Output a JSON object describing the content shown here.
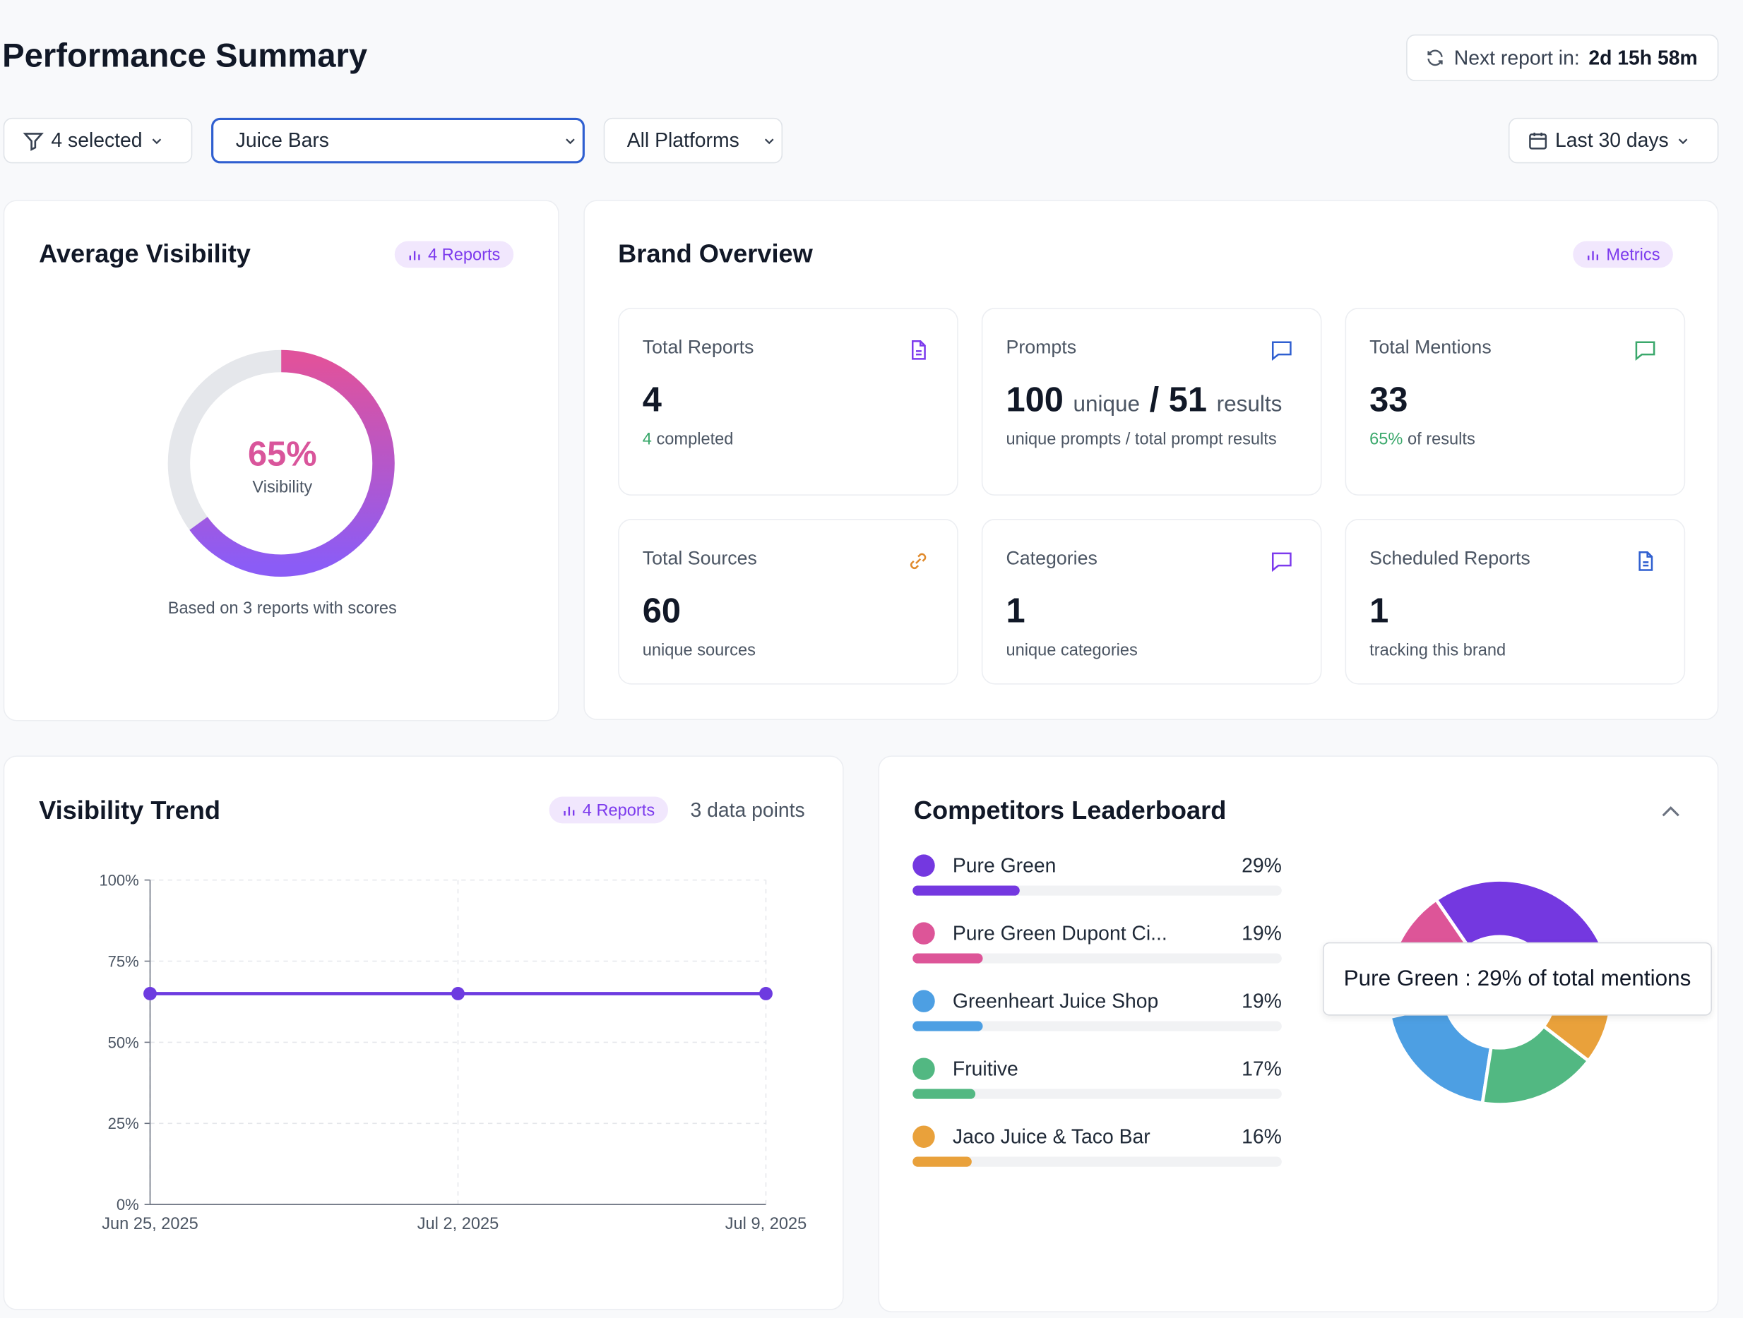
{
  "header": {
    "title": "Performance Summary",
    "next_report_label": "Next report in:",
    "next_report_value": "2d 15h 58m"
  },
  "filters": {
    "selected": "4 selected",
    "category": "Juice Bars",
    "platform": "All Platforms",
    "range": "Last 30 days"
  },
  "average_visibility": {
    "title": "Average Visibility",
    "badge": "4 Reports",
    "value": 65,
    "value_label": "65%",
    "caption": "Visibility",
    "note": "Based on 3 reports with scores"
  },
  "brand_overview": {
    "title": "Brand Overview",
    "badge": "Metrics",
    "cards": [
      {
        "title": "Total Reports",
        "value": 4,
        "sub_highlight": "4",
        "sub": "completed"
      },
      {
        "title": "Prompts",
        "value": 100,
        "value_unit": "unique",
        "separator": "/",
        "value2": 51,
        "value2_unit": "results",
        "sub": "unique prompts / total prompt results"
      },
      {
        "title": "Total Mentions",
        "value": 33,
        "sub_highlight": "65%",
        "sub": "of results"
      },
      {
        "title": "Total Sources",
        "value": 60,
        "sub": "unique sources"
      },
      {
        "title": "Categories",
        "value": 1,
        "sub": "unique categories"
      },
      {
        "title": "Scheduled Reports",
        "value": 1,
        "sub": "tracking this brand"
      }
    ]
  },
  "chart_data": [
    {
      "type": "line",
      "title": "Visibility Trend",
      "badge": "4 Reports",
      "note": "3 data points",
      "x": [
        "Jun 25, 2025",
        "Jul 2, 2025",
        "Jul 9, 2025"
      ],
      "series": [
        {
          "color": "#6d3be0",
          "values": [
            65,
            65,
            65
          ]
        }
      ],
      "ylim": [
        0,
        100
      ],
      "yticks": [
        {
          "value": 0,
          "label": "0%"
        },
        {
          "value": 25,
          "label": "25%"
        },
        {
          "value": 50,
          "label": "50%"
        },
        {
          "value": 75,
          "label": "75%"
        },
        {
          "value": 100,
          "label": "100%"
        }
      ],
      "grid": true
    },
    {
      "type": "pie",
      "title": "Competitors Leaderboard",
      "categories": [
        "Pure Green",
        "Pure Green Dupont Ci...",
        "Greenheart Juice Shop",
        "Fruitive",
        "Jaco Juice & Taco Bar"
      ],
      "values": [
        29,
        19,
        19,
        17,
        16
      ],
      "value_labels": [
        "29%",
        "19%",
        "19%",
        "17%",
        "16%"
      ],
      "colors": [
        "#7438e0",
        "#dd5598",
        "#4d9fe3",
        "#52b882",
        "#e9a13b"
      ],
      "tooltip": "Pure Green : 29% of total mentions"
    }
  ]
}
